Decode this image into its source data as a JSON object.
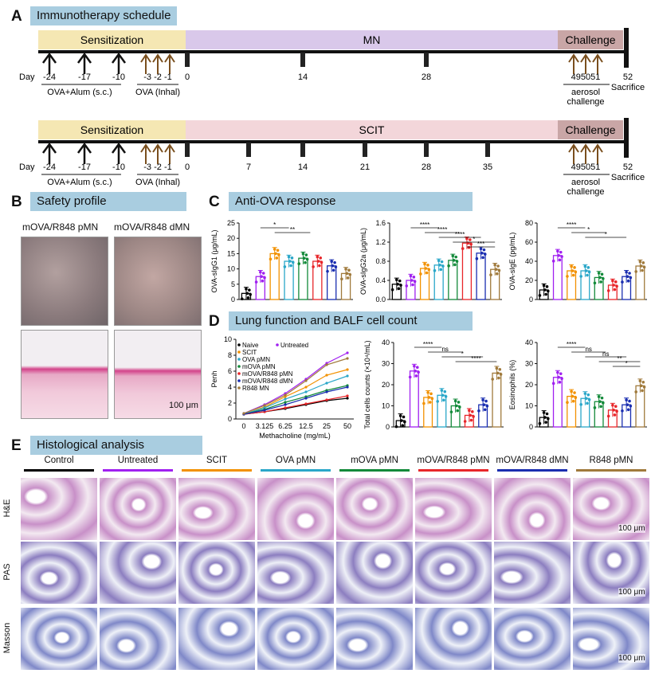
{
  "panelA": {
    "letter": "A",
    "title": "Immunotherapy schedule",
    "timelines": [
      {
        "phases": [
          "Sensitization",
          "MN",
          "Challenge"
        ],
        "ticks": [
          "0",
          "14",
          "28"
        ],
        "challenge_days": "495051",
        "end_day": "52",
        "end_label": "Sacrifice",
        "aerosol": "aerosol",
        "challenge_word": "challenge"
      },
      {
        "phases": [
          "Sensitization",
          "SCIT",
          "Challenge"
        ],
        "ticks": [
          "0",
          "7",
          "14",
          "21",
          "28",
          "35"
        ],
        "challenge_days": "495051",
        "end_day": "52",
        "end_label": "Sacrifice",
        "aerosol": "aerosol",
        "challenge_word": "challenge"
      }
    ],
    "day_label": "Day",
    "sens_days": [
      "-24",
      "-17",
      "-10"
    ],
    "inhal_days": "-3 -2 -1",
    "sens_label": "OVA+Alum (s.c.)",
    "inhal_label": "OVA (Inhal)"
  },
  "panelB": {
    "letter": "B",
    "title": "Safety profile",
    "col1": "mOVA/R848 pMN",
    "col2": "mOVA/R848 dMN",
    "scale": "100 μm"
  },
  "panelC": {
    "letter": "C",
    "title": "Anti-OVA response"
  },
  "panelD": {
    "letter": "D",
    "title": "Lung function and BALF cell count"
  },
  "panelE": {
    "letter": "E",
    "title": "Histological analysis",
    "groups": [
      "Control",
      "Untreated",
      "SCIT",
      "OVA pMN",
      "mOVA pMN",
      "mOVA/R848 pMN",
      "mOVA/R848 dMN",
      "R848 pMN"
    ],
    "rows": [
      "H&E",
      "PAS",
      "Masson"
    ],
    "scale": "100 μm"
  },
  "colors": {
    "groups": [
      "#000000",
      "#a020f0",
      "#f29100",
      "#2aa7c9",
      "#138a3a",
      "#e8262a",
      "#1a2eb0",
      "#a07a3c"
    ],
    "sensitization": "#f5e7b3",
    "mn": "#d9c8ea",
    "scit": "#f3d6da",
    "challenge": "#c9a6a6",
    "title_bg": "#a9cde0"
  },
  "chart_data": [
    {
      "type": "bar",
      "title": "",
      "ylabel": "OVA-sIgG1 (μg/mL)",
      "ylim": [
        0,
        25
      ],
      "yticks": [
        "0",
        "5",
        "10",
        "15",
        "20",
        "25"
      ],
      "categories": [
        "Naive",
        "Untreated",
        "SCIT",
        "OVA pMN",
        "mOVA pMN",
        "mOVA/R848 pMN",
        "mOVA/R848 dMN",
        "R848 MN"
      ],
      "values": [
        2,
        7.5,
        15,
        12.5,
        13.5,
        12.5,
        11,
        8.5
      ],
      "significance": [
        "*",
        "**"
      ]
    },
    {
      "type": "bar",
      "ylabel": "OVA-sIgG2a (μg/mL)",
      "ylim": [
        0,
        1.6
      ],
      "yticks": [
        "0.0",
        "0.4",
        "0.8",
        "1.2",
        "1.6"
      ],
      "categories": [
        "Naive",
        "Untreated",
        "SCIT",
        "OVA pMN",
        "mOVA pMN",
        "mOVA/R848 pMN",
        "mOVA/R848 dMN",
        "R848 MN"
      ],
      "values": [
        0.32,
        0.4,
        0.65,
        0.72,
        0.82,
        1.18,
        0.97,
        0.63
      ],
      "significance": [
        "****",
        "****",
        "****",
        "*",
        "***"
      ]
    },
    {
      "type": "bar",
      "ylabel": "OVA-sIgE (pg/mL)",
      "ylim": [
        0,
        80
      ],
      "yticks": [
        "0",
        "20",
        "40",
        "60",
        "80"
      ],
      "categories": [
        "Naive",
        "Untreated",
        "SCIT",
        "OVA pMN",
        "mOVA pMN",
        "mOVA/R848 pMN",
        "mOVA/R848 dMN",
        "R848 MN"
      ],
      "values": [
        10,
        46,
        30,
        30,
        23,
        15,
        24,
        35
      ],
      "significance": [
        "****",
        "*",
        "*"
      ]
    },
    {
      "type": "line",
      "xlabel": "Methacholine (mg/mL)",
      "ylabel": "Penh",
      "ylim": [
        0,
        10
      ],
      "yticks": [
        "0",
        "2",
        "4",
        "6",
        "8",
        "10"
      ],
      "x": [
        "0",
        "3.125",
        "6.25",
        "12.5",
        "25",
        "50"
      ],
      "series": [
        {
          "name": "Naive",
          "values": [
            0.6,
            0.9,
            1.3,
            1.8,
            2.3,
            2.6
          ]
        },
        {
          "name": "Untreated",
          "values": [
            0.7,
            1.8,
            3.2,
            5.0,
            7.0,
            8.3
          ]
        },
        {
          "name": "SCIT",
          "values": [
            0.6,
            1.5,
            2.8,
            4.0,
            5.5,
            6.2
          ]
        },
        {
          "name": "OVA pMN",
          "values": [
            0.6,
            1.4,
            2.5,
            3.4,
            4.5,
            5.4
          ]
        },
        {
          "name": "mOVA pMN",
          "values": [
            0.6,
            1.2,
            2.1,
            2.8,
            3.6,
            4.2
          ]
        },
        {
          "name": "mOVA/R848 pMN",
          "values": [
            0.6,
            0.9,
            1.4,
            1.9,
            2.4,
            2.9
          ]
        },
        {
          "name": "mOVA/R848 dMN",
          "values": [
            0.6,
            1.1,
            1.8,
            2.6,
            3.4,
            4.0
          ]
        },
        {
          "name": "R848 MN",
          "values": [
            0.7,
            1.7,
            3.0,
            4.8,
            6.8,
            7.6
          ]
        }
      ]
    },
    {
      "type": "bar",
      "ylabel": "Total cells counts (×10⁴/mL)",
      "ylim": [
        0,
        40
      ],
      "yticks": [
        "0",
        "10",
        "20",
        "30",
        "40"
      ],
      "categories": [
        "Naive",
        "Untreated",
        "SCIT",
        "OVA pMN",
        "mOVA pMN",
        "mOVA/R848 pMN",
        "mOVA/R848 dMN",
        "R848 MN"
      ],
      "values": [
        3,
        26.5,
        14,
        15,
        10,
        5.5,
        10.5,
        25.5
      ],
      "significance": [
        "****",
        "ns",
        "*",
        "****"
      ]
    },
    {
      "type": "bar",
      "ylabel": "Eosinophils (%)",
      "ylim": [
        0,
        40
      ],
      "yticks": [
        "0",
        "10",
        "20",
        "30",
        "40"
      ],
      "categories": [
        "Naive",
        "Untreated",
        "SCIT",
        "OVA pMN",
        "mOVA pMN",
        "mOVA/R848 pMN",
        "mOVA/R848 dMN",
        "R848 MN"
      ],
      "values": [
        4.5,
        23.5,
        14.5,
        13.5,
        12,
        8,
        10.5,
        19.5
      ],
      "significance": [
        "****",
        "ns",
        "ns",
        "**",
        "*"
      ]
    }
  ]
}
